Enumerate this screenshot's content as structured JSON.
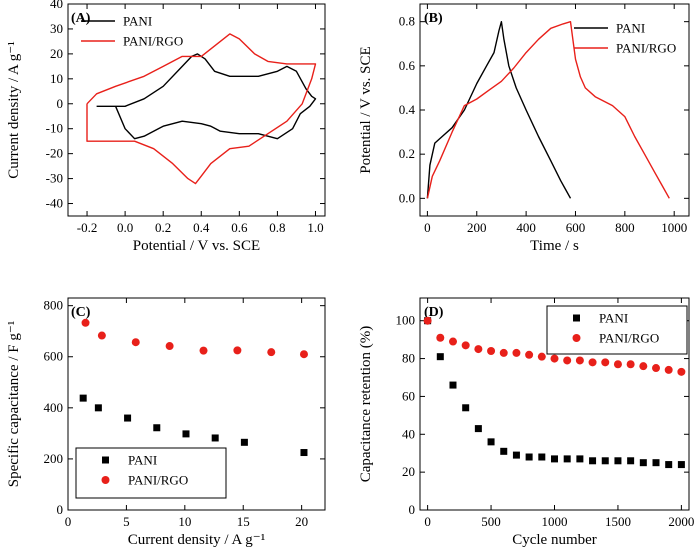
{
  "chart_data": [
    {
      "panel": "(A)",
      "type": "line",
      "xlabel": "Potential / V vs. SCE",
      "ylabel": "Current density / A g⁻¹",
      "xlim": [
        -0.3,
        1.05
      ],
      "ylim": [
        -45,
        40
      ],
      "xticks": [
        -0.2,
        0.0,
        0.2,
        0.4,
        0.6,
        0.8,
        1.0
      ],
      "yticks": [
        -40,
        -30,
        -20,
        -10,
        0,
        10,
        20,
        30,
        40
      ],
      "legend_position": "top-left",
      "series": [
        {
          "name": "PANI",
          "color": "#000000",
          "x": [
            -0.15,
            0.0,
            0.1,
            0.2,
            0.3,
            0.35,
            0.38,
            0.42,
            0.47,
            0.55,
            0.7,
            0.8,
            0.85,
            0.9,
            0.95,
            0.98,
            1.0,
            0.97,
            0.92,
            0.88,
            0.8,
            0.7,
            0.6,
            0.5,
            0.45,
            0.4,
            0.3,
            0.2,
            0.1,
            0.05,
            0.0,
            -0.05,
            -0.15
          ],
          "y": [
            -1,
            -1,
            2,
            7,
            15,
            19,
            20,
            18,
            13,
            11,
            11,
            13,
            15,
            13,
            6,
            3,
            2,
            -1,
            -4,
            -10,
            -14,
            -12,
            -12,
            -11,
            -9,
            -8,
            -7,
            -9,
            -13,
            -14,
            -10,
            -1,
            -1
          ]
        },
        {
          "name": "PANI/RGO",
          "color": "#e8201a",
          "x": [
            -0.2,
            -0.15,
            -0.05,
            0.1,
            0.2,
            0.3,
            0.35,
            0.4,
            0.5,
            0.55,
            0.6,
            0.68,
            0.75,
            0.85,
            0.95,
            1.0,
            0.98,
            0.93,
            0.85,
            0.75,
            0.65,
            0.55,
            0.45,
            0.4,
            0.37,
            0.33,
            0.25,
            0.15,
            0.05,
            -0.05,
            -0.15,
            -0.2,
            -0.2
          ],
          "y": [
            0,
            4,
            7,
            11,
            15,
            19,
            19,
            19,
            25,
            28,
            26,
            20,
            17,
            16,
            16,
            16,
            10,
            0,
            -7,
            -12,
            -17,
            -18,
            -24,
            -29,
            -32,
            -30,
            -24,
            -18,
            -15,
            -15,
            -15,
            -15,
            0
          ]
        }
      ]
    },
    {
      "panel": "(B)",
      "type": "line",
      "xlabel": "Time / s",
      "ylabel": "Potential / V vs. SCE",
      "xlim": [
        -30,
        1060
      ],
      "ylim": [
        -0.08,
        0.88
      ],
      "xticks": [
        0,
        200,
        400,
        600,
        800,
        1000
      ],
      "yticks": [
        0.0,
        0.2,
        0.4,
        0.6,
        0.8
      ],
      "legend_position": "top-right",
      "series": [
        {
          "name": "PANI",
          "color": "#000000",
          "x": [
            0,
            10,
            30,
            60,
            100,
            150,
            200,
            240,
            270,
            290,
            300,
            310,
            330,
            360,
            400,
            450,
            500,
            540,
            560,
            580
          ],
          "y": [
            0.0,
            0.15,
            0.25,
            0.28,
            0.32,
            0.4,
            0.52,
            0.6,
            0.66,
            0.76,
            0.8,
            0.72,
            0.6,
            0.5,
            0.4,
            0.28,
            0.17,
            0.08,
            0.04,
            0.0
          ]
        },
        {
          "name": "PANI/RGO",
          "color": "#e8201a",
          "x": [
            0,
            20,
            50,
            100,
            150,
            200,
            250,
            300,
            350,
            400,
            450,
            500,
            550,
            580,
            600,
            620,
            640,
            680,
            750,
            800,
            840,
            880,
            920,
            950,
            980
          ],
          "y": [
            0.0,
            0.1,
            0.17,
            0.3,
            0.42,
            0.45,
            0.49,
            0.53,
            0.59,
            0.66,
            0.72,
            0.77,
            0.79,
            0.8,
            0.63,
            0.55,
            0.5,
            0.46,
            0.42,
            0.37,
            0.28,
            0.2,
            0.12,
            0.06,
            0.0
          ]
        }
      ]
    },
    {
      "panel": "(C)",
      "type": "scatter",
      "xlabel": "Current density / A g⁻¹",
      "ylabel": "Specific capacitance / F g⁻¹",
      "xlim": [
        0,
        22
      ],
      "ylim": [
        0,
        830
      ],
      "xticks": [
        0,
        5,
        10,
        15,
        20
      ],
      "yticks": [
        0,
        200,
        400,
        600,
        800
      ],
      "legend_position": "bottom-left",
      "series": [
        {
          "name": "PANI",
          "marker": "square",
          "color": "#000000",
          "x": [
            1.3,
            2.6,
            5.1,
            7.6,
            10.1,
            12.6,
            15.1,
            20.2
          ],
          "y": [
            438,
            400,
            360,
            322,
            298,
            282,
            265,
            225
          ]
        },
        {
          "name": "PANI/RGO",
          "marker": "circle",
          "color": "#e8201a",
          "x": [
            1.5,
            2.9,
            5.8,
            8.7,
            11.6,
            14.5,
            17.4,
            20.2
          ],
          "y": [
            733,
            683,
            657,
            642,
            624,
            625,
            618,
            610
          ]
        }
      ]
    },
    {
      "panel": "(D)",
      "type": "scatter",
      "xlabel": "Cycle number",
      "ylabel": "Capacitance retention (%)",
      "xlim": [
        -60,
        2060
      ],
      "ylim": [
        0,
        112
      ],
      "xticks": [
        0,
        500,
        1000,
        1500,
        2000
      ],
      "yticks": [
        0,
        20,
        40,
        60,
        80,
        100
      ],
      "legend_position": "top-right",
      "series": [
        {
          "name": "PANI",
          "marker": "square",
          "color": "#000000",
          "x": [
            0,
            100,
            200,
            300,
            400,
            500,
            600,
            700,
            800,
            900,
            1000,
            1100,
            1200,
            1300,
            1400,
            1500,
            1600,
            1700,
            1800,
            1900,
            2000
          ],
          "y": [
            100,
            81,
            66,
            54,
            43,
            36,
            31,
            29,
            28,
            28,
            27,
            27,
            27,
            26,
            26,
            26,
            26,
            25,
            25,
            24,
            24
          ]
        },
        {
          "name": "PANI/RGO",
          "marker": "circle",
          "color": "#e8201a",
          "x": [
            0,
            100,
            200,
            300,
            400,
            500,
            600,
            700,
            800,
            900,
            1000,
            1100,
            1200,
            1300,
            1400,
            1500,
            1600,
            1700,
            1800,
            1900,
            2000
          ],
          "y": [
            100,
            91,
            89,
            87,
            85,
            84,
            83,
            83,
            82,
            81,
            80,
            79,
            79,
            78,
            78,
            77,
            77,
            76,
            75,
            74,
            73
          ]
        }
      ]
    }
  ]
}
